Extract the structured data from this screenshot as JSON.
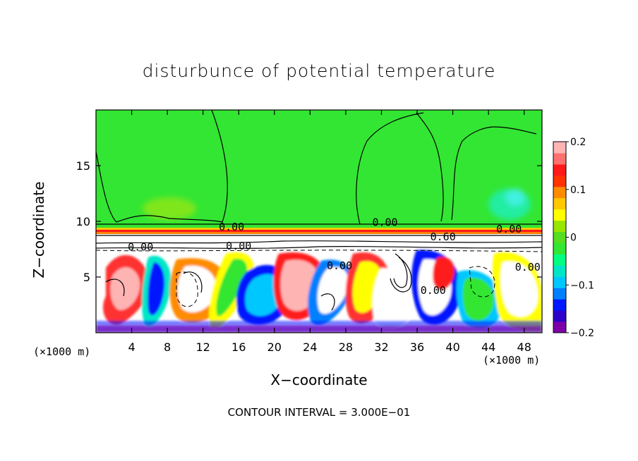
{
  "chart_data": {
    "type": "heatmap",
    "title": "disturbunce of potential temperature",
    "xlabel": "X−coordinate",
    "ylabel": "Z−coordinate",
    "x_unit": "(×1000 m)",
    "x_unit_right": "(×1000 m)",
    "xlim": [
      0,
      50
    ],
    "ylim": [
      0,
      20
    ],
    "x_ticks": [
      4,
      8,
      12,
      16,
      20,
      24,
      28,
      32,
      36,
      40,
      44,
      48
    ],
    "y_ticks": [
      5,
      10,
      15
    ],
    "colorbar": {
      "range": [
        -0.2,
        0.2
      ],
      "ticks": [
        0.2,
        0.1,
        0,
        -0.1,
        -0.2
      ],
      "tick_labels": [
        "0.2",
        "0.1",
        "0",
        "−0.1",
        "−0.2"
      ],
      "colors": [
        "#7b00a8",
        "#2d00c8",
        "#0018ff",
        "#0080ff",
        "#00c8ff",
        "#00e6c8",
        "#00ff80",
        "#33e633",
        "#55dd22",
        "#99e600",
        "#ffff00",
        "#ffc800",
        "#ff8c00",
        "#ff3200",
        "#ff1a1a",
        "#ff7070",
        "#ffb4b4"
      ]
    },
    "contour_labels": [
      {
        "text": "0.00",
        "x": 15.2,
        "y": 9.5
      },
      {
        "text": "0.00",
        "x": 32.4,
        "y": 9.9
      },
      {
        "text": "0.00",
        "x": 46.3,
        "y": 9.3
      },
      {
        "text": "0.60",
        "x": 38.9,
        "y": 8.6
      },
      {
        "text": "0.00",
        "x": 5.0,
        "y": 7.7
      },
      {
        "text": "0.00",
        "x": 16.0,
        "y": 7.8
      },
      {
        "text": "0.00",
        "x": 27.3,
        "y": 6.0
      },
      {
        "text": "0.00",
        "x": 37.8,
        "y": 3.8
      },
      {
        "text": "0.00",
        "x": 48.4,
        "y": 5.9
      }
    ],
    "annotation": "CONTOUR INTERVAL = 3.000E−01"
  }
}
